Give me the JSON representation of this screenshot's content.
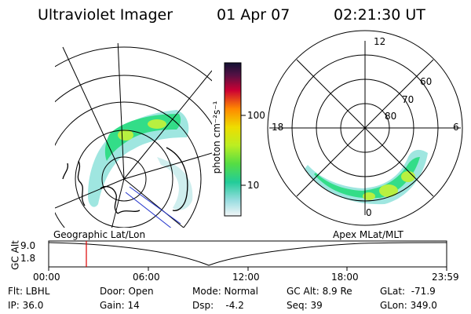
{
  "header": {
    "instrument": "Ultraviolet Imager",
    "date": "01 Apr 07",
    "time": "02:21:30 UT"
  },
  "colorbar": {
    "unit_label": "photon cm⁻²s⁻¹",
    "ticks": [
      "100",
      "10"
    ]
  },
  "polar_plot": {
    "mlt_labels": {
      "top": "12",
      "left": "18",
      "right": "6",
      "bottom": "0"
    },
    "lat_labels": [
      "60",
      "70",
      "80"
    ]
  },
  "timeline": {
    "y_axis_label": "GC Alt",
    "y_ticks": [
      "9.0",
      "1.8"
    ],
    "left_projection": "Geographic Lat/Lon",
    "right_projection": "Apex MLat/MLT",
    "x_ticks": [
      "00:00",
      "06:00",
      "12:00",
      "18:00",
      "23:59"
    ],
    "current_time_color": "#dd0000"
  },
  "info": {
    "flt": "Flt: LBHL",
    "ip": "IP: 36.0",
    "door": "Door: Open",
    "gain": "Gain: 14",
    "mode": "Mode: Normal",
    "dsp": "Dsp:    -4.2",
    "gc_alt": "GC Alt: 8.9 Re",
    "seq": "Seq: 39",
    "glat": "GLat:  -71.9",
    "glon": "GLon: 349.0"
  },
  "colors": {
    "emission_low": "#9fe6e0",
    "emission_mid": "#33dd88",
    "emission_high": "#b8f040"
  }
}
